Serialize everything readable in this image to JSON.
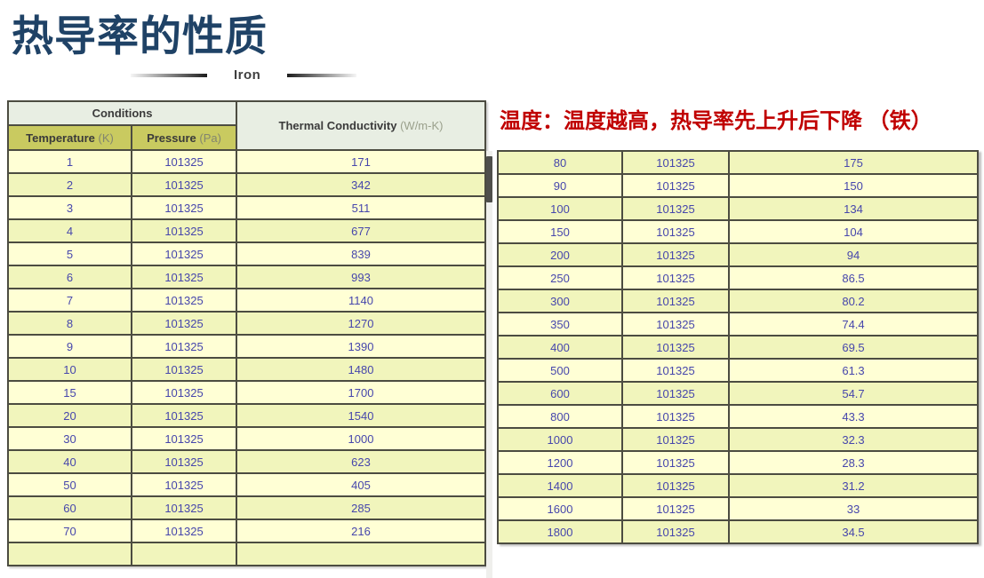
{
  "page": {
    "title": "热导率的性质",
    "material_label": "Iron",
    "annotation": "温度：温度越高，热导率先上升后下降 （铁）"
  },
  "colors": {
    "title_navy": "#1f4266",
    "annotation_red": "#c00000",
    "header_green": "#e8eee3",
    "subheader_olive": "#c9ca60",
    "row_light": "#ffffd5",
    "row_dark": "#f1f5bc",
    "cell_text_blue": "#4646ac",
    "grid_border": "#4c4c41"
  },
  "left_table": {
    "header": {
      "conditions": "Conditions",
      "temperature_label": "Temperature",
      "temperature_unit": "(K)",
      "pressure_label": "Pressure",
      "pressure_unit": "(Pa)",
      "conductivity_label": "Thermal Conductivity",
      "conductivity_unit": "(W/m-K)"
    },
    "rows": [
      [
        "1",
        "101325",
        "171"
      ],
      [
        "2",
        "101325",
        "342"
      ],
      [
        "3",
        "101325",
        "511"
      ],
      [
        "4",
        "101325",
        "677"
      ],
      [
        "5",
        "101325",
        "839"
      ],
      [
        "6",
        "101325",
        "993"
      ],
      [
        "7",
        "101325",
        "1140"
      ],
      [
        "8",
        "101325",
        "1270"
      ],
      [
        "9",
        "101325",
        "1390"
      ],
      [
        "10",
        "101325",
        "1480"
      ],
      [
        "15",
        "101325",
        "1700"
      ],
      [
        "20",
        "101325",
        "1540"
      ],
      [
        "30",
        "101325",
        "1000"
      ],
      [
        "40",
        "101325",
        "623"
      ],
      [
        "50",
        "101325",
        "405"
      ],
      [
        "60",
        "101325",
        "285"
      ],
      [
        "70",
        "101325",
        "216"
      ],
      [
        "",
        "",
        ""
      ]
    ]
  },
  "right_table": {
    "rows": [
      [
        "80",
        "101325",
        "175"
      ],
      [
        "90",
        "101325",
        "150"
      ],
      [
        "100",
        "101325",
        "134"
      ],
      [
        "150",
        "101325",
        "104"
      ],
      [
        "200",
        "101325",
        "94"
      ],
      [
        "250",
        "101325",
        "86.5"
      ],
      [
        "300",
        "101325",
        "80.2"
      ],
      [
        "350",
        "101325",
        "74.4"
      ],
      [
        "400",
        "101325",
        "69.5"
      ],
      [
        "500",
        "101325",
        "61.3"
      ],
      [
        "600",
        "101325",
        "54.7"
      ],
      [
        "800",
        "101325",
        "43.3"
      ],
      [
        "1000",
        "101325",
        "32.3"
      ],
      [
        "1200",
        "101325",
        "28.3"
      ],
      [
        "1400",
        "101325",
        "31.2"
      ],
      [
        "1600",
        "101325",
        "33"
      ],
      [
        "1800",
        "101325",
        "34.5"
      ]
    ]
  }
}
